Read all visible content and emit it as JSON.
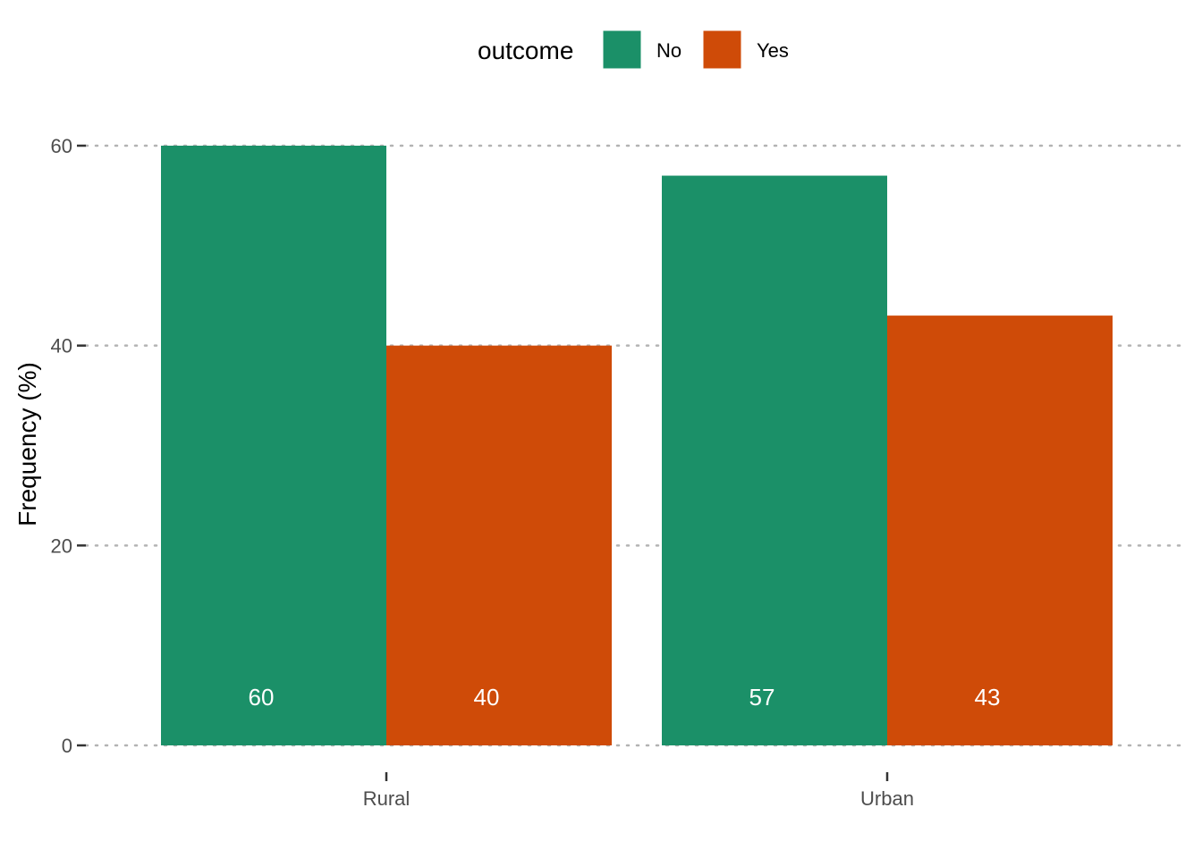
{
  "chart_data": {
    "type": "bar",
    "categories": [
      "Rural",
      "Urban"
    ],
    "series": [
      {
        "name": "No",
        "values": [
          60,
          57
        ],
        "color": "#1b9068"
      },
      {
        "name": "Yes",
        "values": [
          40,
          43
        ],
        "color": "#cf4b08"
      }
    ],
    "bar_labels": [
      [
        "60",
        "57"
      ],
      [
        "40",
        "43"
      ]
    ],
    "xlabel": "",
    "ylabel": "Frequency (%)",
    "ylim": [
      0,
      60
    ],
    "yticks": [
      0,
      20,
      40,
      60
    ],
    "legend_title": "outcome",
    "legend_position": "top",
    "grid": "horizontal dotted"
  }
}
